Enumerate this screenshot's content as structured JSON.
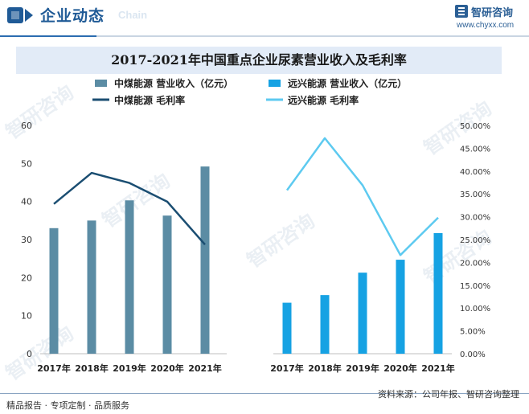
{
  "header": {
    "title": "企业动态",
    "subtitle": "Chain",
    "brand_name": "智研咨询",
    "brand_url": "www.chyxx.com"
  },
  "footer": {
    "left": "精品报告 · 专项定制 · 品质服务",
    "source": "资料来源：公司年报、智研咨询整理"
  },
  "watermark": "智研咨询",
  "chart_data": {
    "type": "bar+line",
    "title": "2017-2021年中国重点企业尿素营业收入及毛利率",
    "categories": [
      "2017年",
      "2018年",
      "2019年",
      "2020年",
      "2021年"
    ],
    "left_axis": {
      "ylim": [
        0,
        60
      ],
      "ticks": [
        "0",
        "10",
        "20",
        "30",
        "40",
        "50",
        "60"
      ]
    },
    "right_axis": {
      "ylim": [
        0,
        50
      ],
      "ticks": [
        "0.00%",
        "5.00%",
        "10.00%",
        "15.00%",
        "20.00%",
        "25.00%",
        "30.00%",
        "35.00%",
        "40.00%",
        "45.00%",
        "50.00%"
      ]
    },
    "legend": {
      "position": "top",
      "entries": [
        "中煤能源 营业收入（亿元）",
        "远兴能源 营业收入（亿元）",
        "中煤能源 毛利率",
        "远兴能源 毛利率"
      ]
    },
    "series": [
      {
        "name": "中煤能源 营业收入（亿元）",
        "type": "bar",
        "axis": "left",
        "group": "zhongmei",
        "color": "#5b8ca4",
        "values": [
          33,
          35,
          40.3,
          36.3,
          49.2
        ]
      },
      {
        "name": "远兴能源 营业收入（亿元）",
        "type": "bar",
        "axis": "left",
        "group": "yuanxing",
        "color": "#16a2e3",
        "values": [
          13.4,
          15.4,
          21.3,
          24.7,
          31.7
        ]
      },
      {
        "name": "中煤能源 毛利率",
        "type": "line",
        "axis": "right",
        "group": "zhongmei",
        "color": "#1b4e72",
        "values": [
          32.8,
          39.6,
          37.4,
          33.3,
          23.9
        ]
      },
      {
        "name": "远兴能源 毛利率",
        "type": "line",
        "axis": "right",
        "group": "yuanxing",
        "color": "#5dcaf0",
        "values": [
          35.8,
          47.2,
          36.9,
          21.6,
          29.8
        ]
      }
    ]
  }
}
